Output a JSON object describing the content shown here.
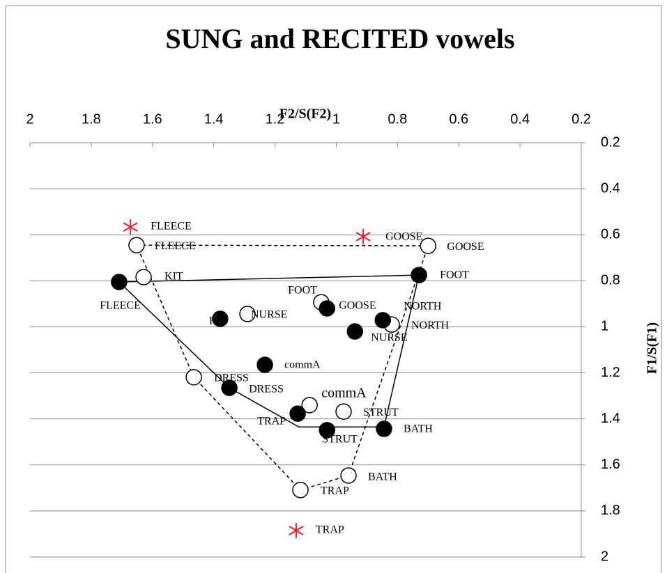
{
  "chart_data": {
    "type": "scatter",
    "title": "SUNG and RECITED vowels",
    "xlabel": "F2/S(F2)",
    "ylabel": "F1/S(F1)",
    "xlim": [
      2,
      0.2
    ],
    "ylim": [
      2,
      0.2
    ],
    "xticks": [
      2,
      1.8,
      1.6,
      1.4,
      1.2,
      1,
      0.8,
      0.6,
      0.4,
      0.2
    ],
    "yticks": [
      0.2,
      0.4,
      0.6,
      0.8,
      1,
      1.2,
      1.4,
      1.6,
      1.8,
      2
    ],
    "grid": true,
    "series": [
      {
        "marker": "none",
        "line": "dashed",
        "color": "#000000",
        "x": [
          0.7,
          1.652,
          1.465,
          1.117,
          0.96,
          0.7
        ],
        "y": [
          0.648,
          0.645,
          1.219,
          1.709,
          1.646,
          0.648
        ]
      },
      {
        "marker": "none",
        "line": "solid",
        "color": "#000000",
        "x": [
          0.73,
          1.709,
          1.349,
          1.122,
          0.844,
          0.73
        ],
        "y": [
          0.775,
          0.805,
          1.265,
          1.435,
          1.435,
          0.775
        ]
      },
      {
        "marker": "open",
        "line": "none",
        "color": "#000000",
        "labels": [
          "FLEECE",
          "GOOSE",
          "KIT",
          "NURSE",
          "FOOT",
          "NORTH",
          "DRESS",
          "commA",
          "STRUT",
          "TRAP",
          "BATH"
        ],
        "x": [
          1.652,
          0.7,
          1.629,
          1.29,
          1.049,
          0.819,
          1.465,
          1.087,
          0.976,
          1.117,
          0.96
        ],
        "y": [
          0.645,
          0.648,
          0.784,
          0.944,
          0.893,
          0.99,
          1.219,
          1.34,
          1.368,
          1.709,
          1.646
        ]
      },
      {
        "marker": "filled",
        "line": "none",
        "color": "#000000",
        "labels": [
          "FLEECE",
          "FOOT",
          "GOOSE",
          "KIT",
          "NORTH",
          "NURSE",
          "commA",
          "DRESS",
          "TRAP",
          "STRUT",
          "BATH"
        ],
        "x": [
          1.709,
          0.73,
          1.03,
          1.379,
          0.848,
          0.939,
          1.233,
          1.349,
          1.126,
          1.03,
          0.844
        ],
        "y": [
          0.805,
          0.775,
          0.92,
          0.965,
          0.971,
          1.02,
          1.165,
          1.265,
          1.377,
          1.449,
          1.443
        ]
      },
      {
        "marker": "asterisk",
        "line": "none",
        "color": "#e8202a",
        "labels": [
          "FLEECE",
          "GOOSE",
          "TRAP"
        ],
        "x": [
          1.672,
          0.912,
          1.131
        ],
        "y": [
          0.566,
          0.608,
          1.885
        ]
      }
    ]
  }
}
